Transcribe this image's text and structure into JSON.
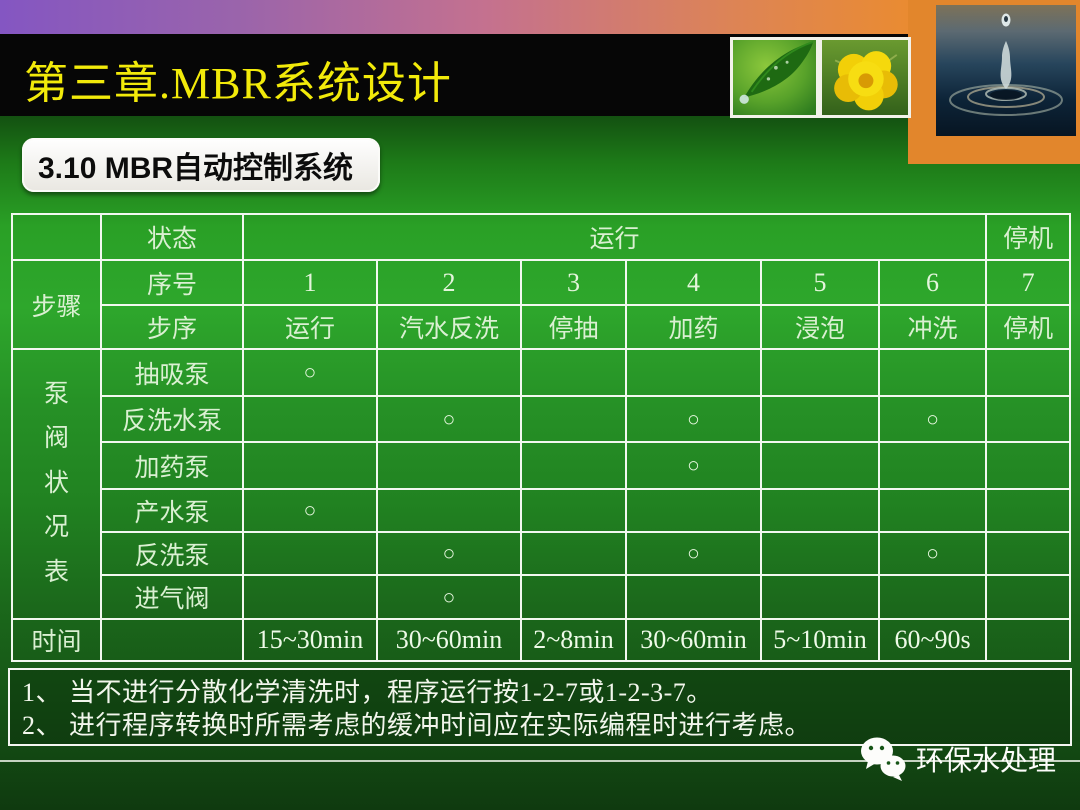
{
  "header": {
    "title": "第三章.MBR系统设计"
  },
  "section_badge": "3.10 MBR自动控制系统",
  "table": {
    "labels": {
      "state": "状态",
      "steps": "步骤",
      "sequence": "序号",
      "step_name": "步序",
      "pump_valve_status": "泵阀状况表",
      "time": "时间"
    },
    "run": "运行",
    "stop": "停机",
    "mark": "○",
    "step_numbers": [
      "1",
      "2",
      "3",
      "4",
      "5",
      "6",
      "7"
    ],
    "step_names": [
      "运行",
      "汽水反洗",
      "停抽",
      "加药",
      "浸泡",
      "冲洗",
      "停机"
    ],
    "pump_rows": [
      {
        "label": "抽吸泵",
        "marks": [
          1
        ]
      },
      {
        "label": "反洗水泵",
        "marks": [
          2,
          4,
          6
        ]
      },
      {
        "label": "加药泵",
        "marks": [
          4
        ]
      },
      {
        "label": "产水泵",
        "marks": [
          1
        ]
      },
      {
        "label": "反洗泵",
        "marks": [
          2,
          4,
          6
        ]
      },
      {
        "label": "进气阀",
        "marks": [
          2
        ]
      }
    ],
    "time_values": [
      "15~30min",
      "30~60min",
      "2~8min",
      "30~60min",
      "5~10min",
      "60~90s",
      ""
    ]
  },
  "notes": [
    "1、 当不进行分散化学清洗时，程序运行按1-2-7或1-2-3-7。",
    "2、 进行程序转换时所需考虑的缓冲时间应在实际编程时进行考虑。"
  ],
  "footer": {
    "brand": "环保水处理",
    "icon": "wechat-icon"
  },
  "images": {
    "leaf": "leaf-photo",
    "flower": "flower-photo",
    "water_drop": "water-drop-photo"
  },
  "colors": {
    "title_yellow": "#F2EA0A",
    "strip_left_purple": "#8456C2",
    "strip_mid_pink": "#C4718F",
    "strip_right_orange": "#F09020",
    "orange_block": "#E2862C",
    "header_black": "#060606",
    "bg_green_bright": "#2EA72C",
    "bg_green_dark": "#0F3A0F",
    "table_line": "#F2F8F0",
    "table_text": "#DAF0D2",
    "notes_border": "#F4F6F2"
  }
}
